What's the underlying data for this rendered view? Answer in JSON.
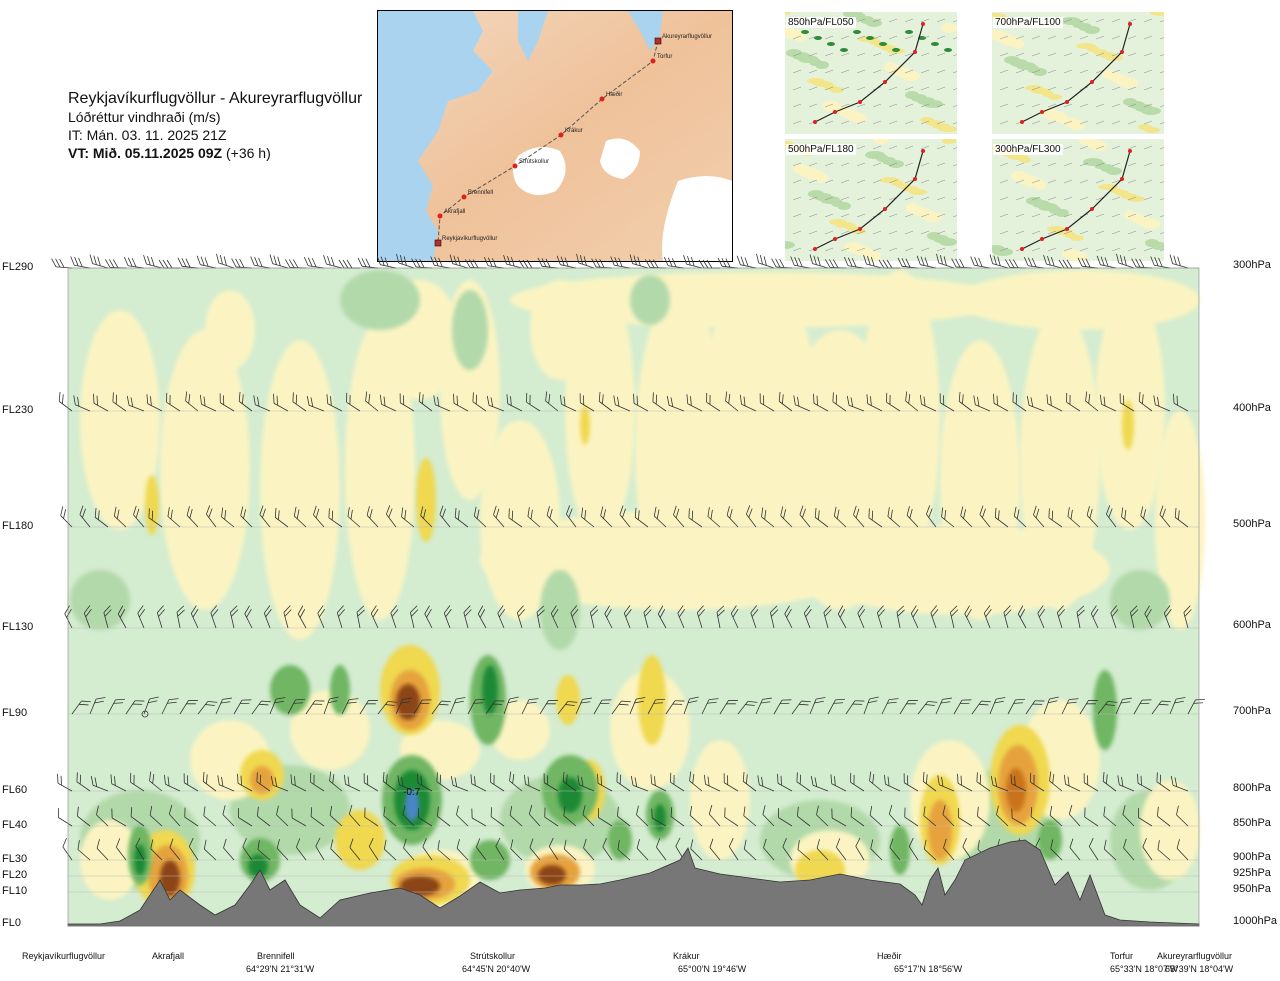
{
  "header": {
    "route": "Reykjavíkurflugvöllur - Akureyrarflugvöllur",
    "subtitle": "Lóðréttur vindhraði (m/s)",
    "it": "IT: Mán. 03. 11. 2025 21Z",
    "vt_bold": "VT: Mið. 05.11.2025 09Z",
    "vt_rest": " (+36 h)"
  },
  "route_map": {
    "points": [
      {
        "name": "Akureyrarflugvöllur"
      },
      {
        "name": "Torfur"
      },
      {
        "name": "Hæðir"
      },
      {
        "name": "Krákur"
      },
      {
        "name": "Strútskollur"
      },
      {
        "name": "Brennifell"
      },
      {
        "name": "Akrafjall"
      },
      {
        "name": "Reykjavíkurflugvöllur"
      }
    ]
  },
  "mini_maps": [
    {
      "label": "850hPa/FL050"
    },
    {
      "label": "700hPa/FL100"
    },
    {
      "label": "500hPa/FL180"
    },
    {
      "label": "300hPa/FL300"
    }
  ],
  "chart_data": {
    "type": "heatmap",
    "title": "Lóðréttur vindhraði (m/s)",
    "levels_left": [
      "FL290",
      "FL230",
      "FL180",
      "FL130",
      "FL90",
      "FL60",
      "FL40",
      "FL30",
      "FL20",
      "FL10",
      "FL0"
    ],
    "levels_right": [
      "300hPa",
      "400hPa",
      "500hPa",
      "600hPa",
      "700hPa",
      "800hPa",
      "850hPa",
      "900hPa",
      "925hPa",
      "950hPa",
      "1000hPa"
    ],
    "colors": {
      "pale_green": "#d4ecd0",
      "light_green": "#b2d9aa",
      "mid_green": "#6fb663",
      "dark_green": "#1f8a34",
      "blue": "#4a86c8",
      "pale_yellow": "#fbf4c2",
      "yellow": "#f0d850",
      "orange": "#e6a33c",
      "brown": "#8c4513",
      "terrain": "#777777"
    },
    "annotation": "-0.7",
    "locations": [
      {
        "name": "Reykjavíkurflugvöllur",
        "coord": ""
      },
      {
        "name": "Akrafjall",
        "coord": ""
      },
      {
        "name": "Brennifell",
        "coord": "64°29'N 21°31'W"
      },
      {
        "name": "Strútskollur",
        "coord": "64°45'N 20°40'W"
      },
      {
        "name": "Krákur",
        "coord": "65°00'N 19°46'W"
      },
      {
        "name": "Hæðir",
        "coord": "65°17'N 18°56'W"
      },
      {
        "name": "Torfur",
        "coord": "65°33'N 18°07'W"
      },
      {
        "name": "Akureyrarflugvöllur",
        "coord": "65°39'N 18°04'W"
      }
    ]
  }
}
